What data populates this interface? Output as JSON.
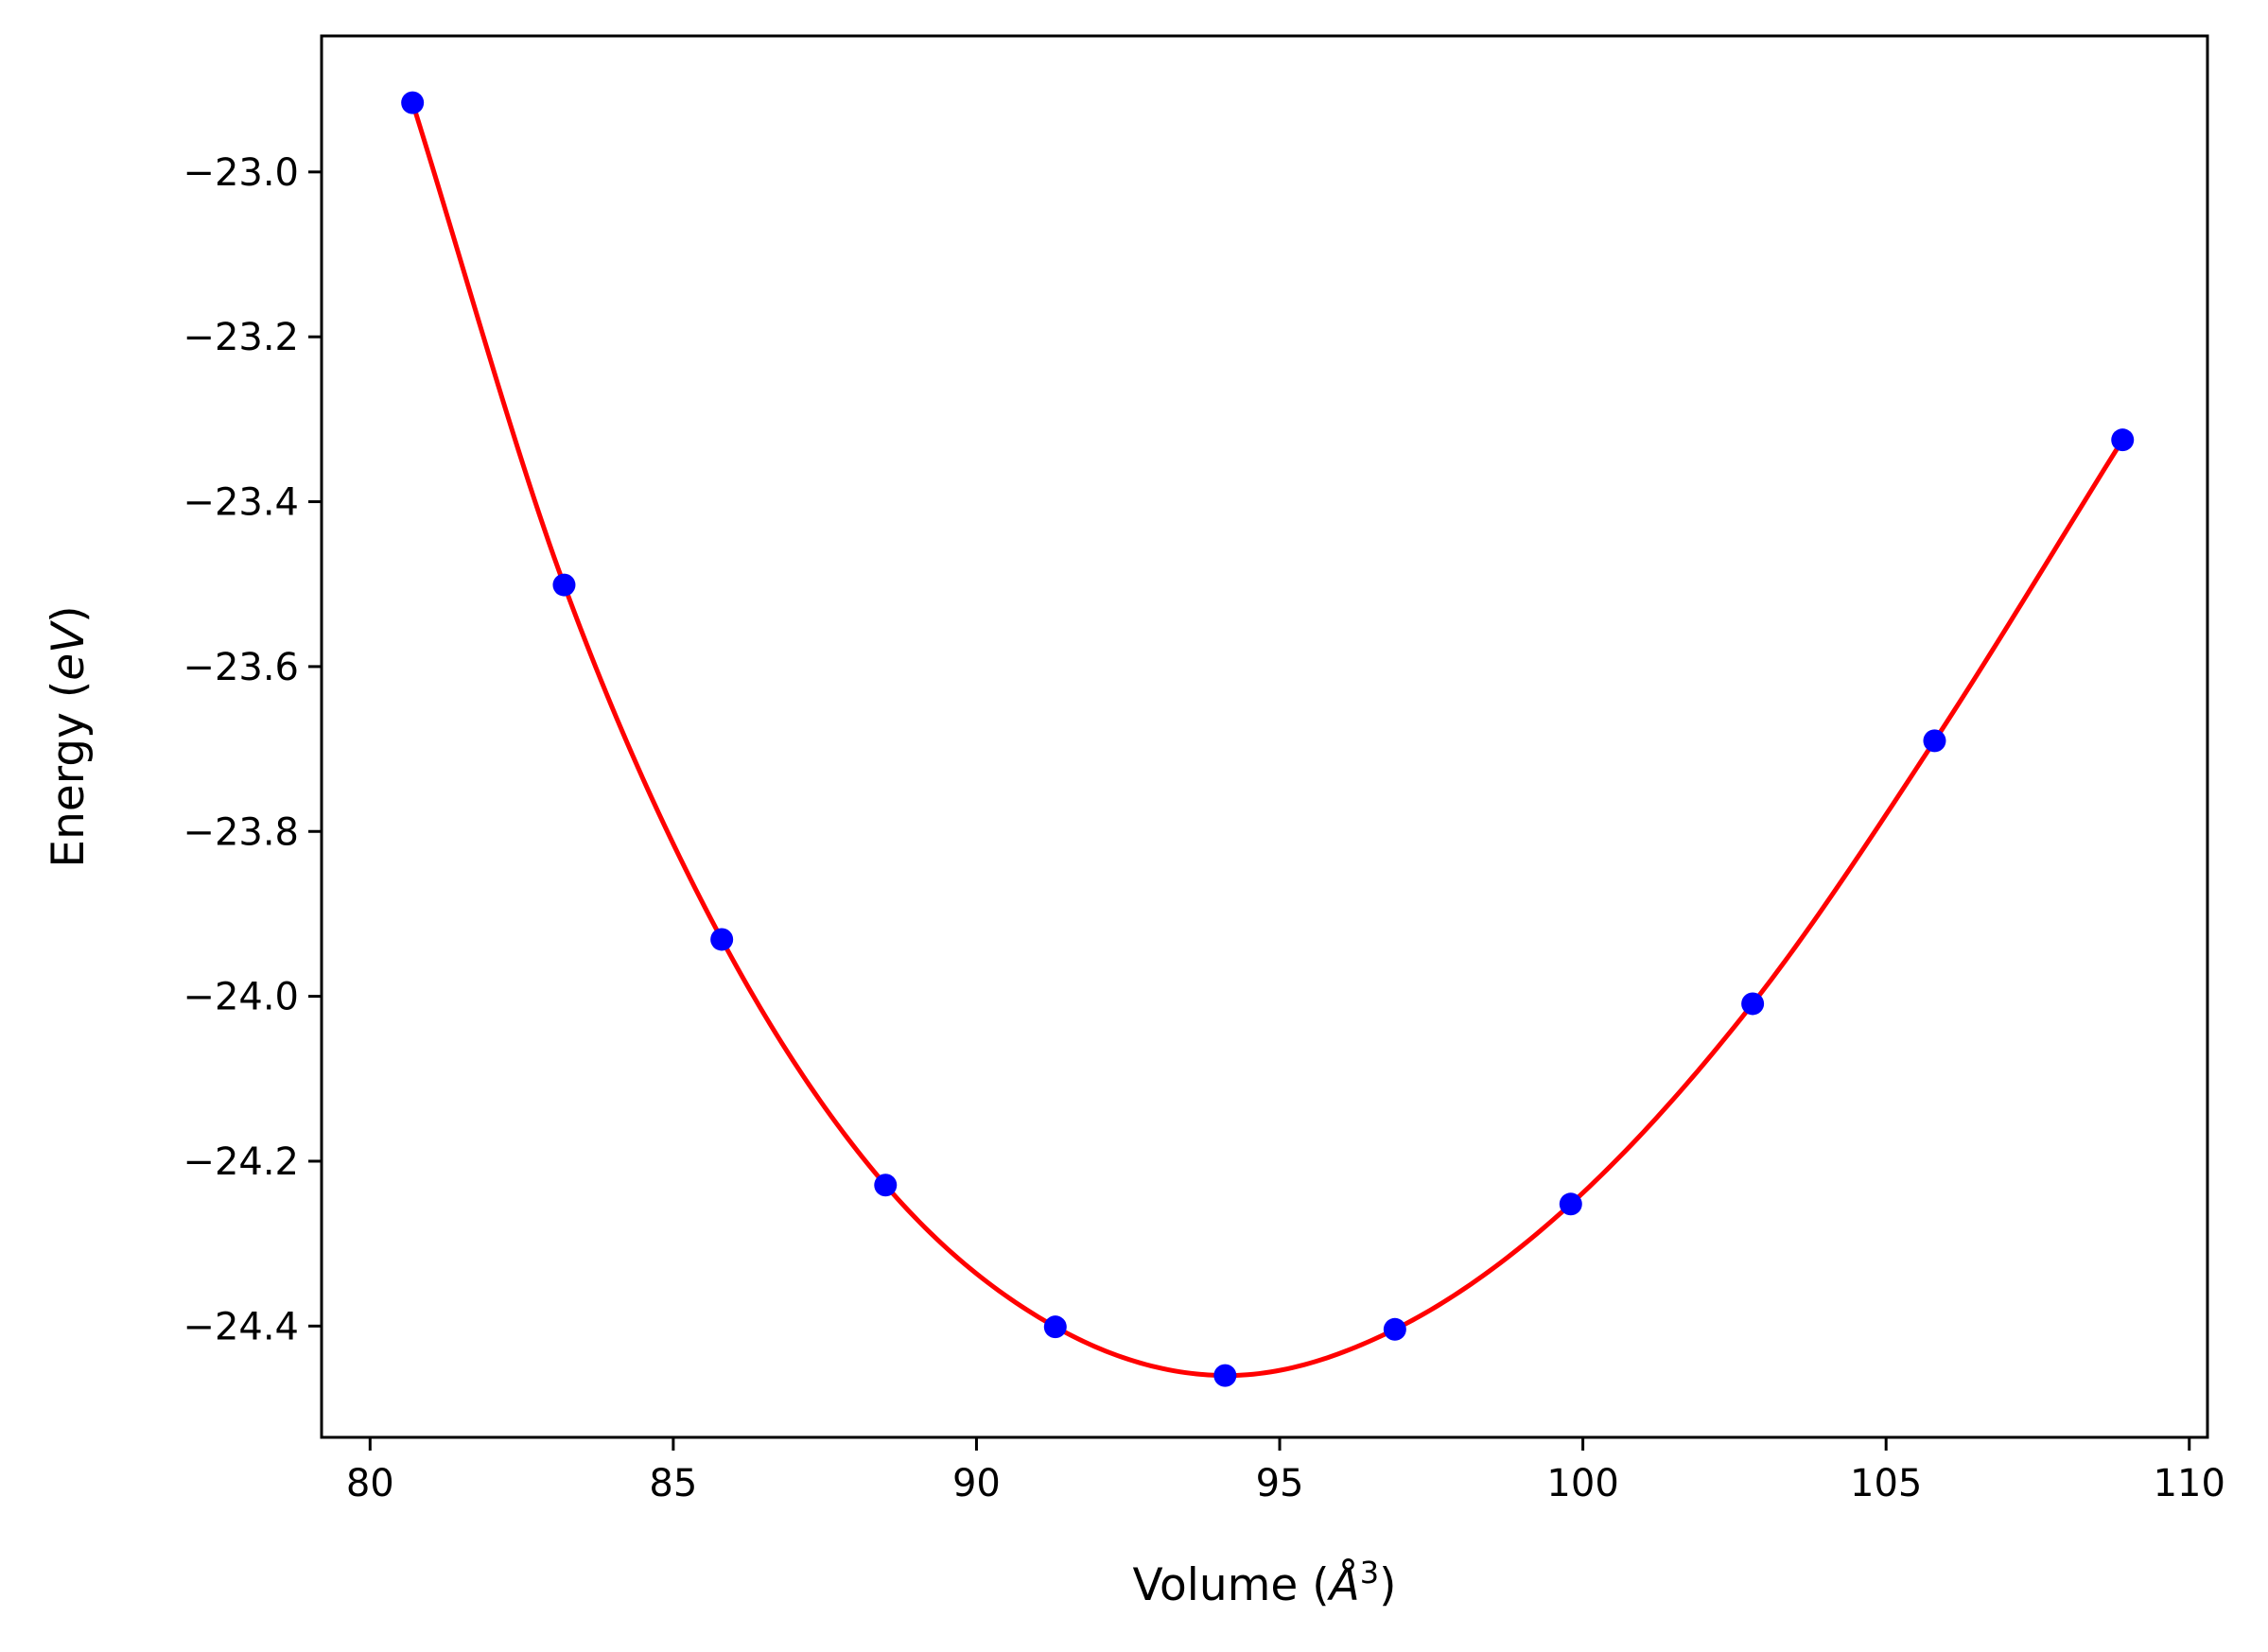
{
  "chart_data": {
    "type": "scatter",
    "title": "",
    "xlabel": {
      "prefix": "Volume (",
      "symbol": "Å",
      "superscript": "3",
      "suffix": ")"
    },
    "ylabel": {
      "prefix": "Energy (",
      "symbol": "eV",
      "suffix": ")"
    },
    "xlim": [
      79.2,
      110.3
    ],
    "ylim": [
      -24.535,
      -22.835
    ],
    "xticks": [
      80,
      85,
      90,
      95,
      100,
      105,
      110
    ],
    "xtick_labels": [
      "80",
      "85",
      "90",
      "95",
      "100",
      "105",
      "110"
    ],
    "yticks": [
      -23.0,
      -23.2,
      -23.4,
      -23.6,
      -23.8,
      -24.0,
      -24.2,
      -24.4
    ],
    "ytick_labels": [
      "−23.0",
      "−23.2",
      "−23.4",
      "−23.6",
      "−23.8",
      "−24.0",
      "−24.2",
      "−24.4"
    ],
    "grid": false,
    "series": [
      {
        "kind": "points",
        "color": "#0000ff",
        "x": [
          80.7,
          83.2,
          85.8,
          88.5,
          91.3,
          94.1,
          96.9,
          99.8,
          102.8,
          105.8,
          108.9
        ],
        "y": [
          -22.916,
          -23.501,
          -23.931,
          -24.229,
          -24.401,
          -24.46,
          -24.404,
          -24.252,
          -24.009,
          -23.69,
          -23.325
        ]
      },
      {
        "kind": "fit-curve",
        "color": "#ff0000",
        "x": [
          80.7,
          83.2,
          85.8,
          88.5,
          91.3,
          94.1,
          96.9,
          99.8,
          102.8,
          105.8,
          108.9
        ],
        "y": [
          -22.916,
          -23.501,
          -23.931,
          -24.229,
          -24.401,
          -24.46,
          -24.404,
          -24.252,
          -24.009,
          -23.69,
          -23.325
        ]
      }
    ]
  }
}
